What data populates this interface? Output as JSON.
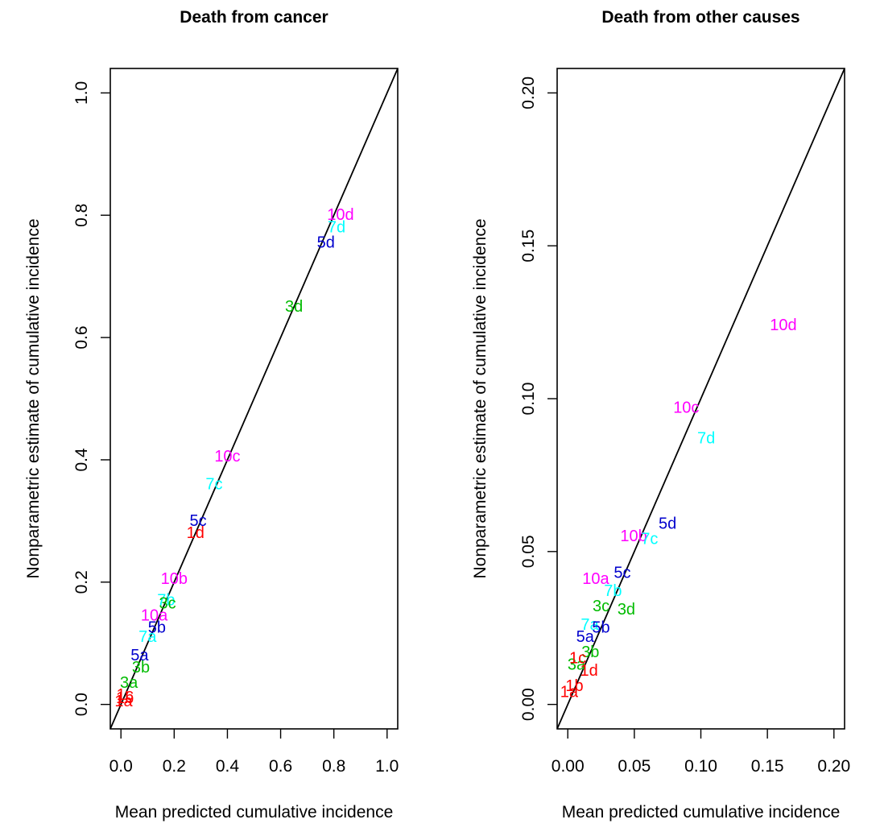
{
  "chart_data": [
    {
      "type": "scatter",
      "title": "Death from cancer",
      "xlabel": "Mean predicted cumulative incidence",
      "ylabel": "Nonparametric estimate of cumulative incidence",
      "xlim": [
        -0.04,
        1.04
      ],
      "ylim": [
        -0.04,
        1.04
      ],
      "xticks": [
        "0.0",
        "0.2",
        "0.4",
        "0.6",
        "0.8",
        "1.0"
      ],
      "yticks": [
        "0.0",
        "0.2",
        "0.4",
        "0.6",
        "0.8",
        "1.0"
      ],
      "reference_line": "y = x",
      "grid": false,
      "points": [
        {
          "label": "10d",
          "x": 0.825,
          "y": 0.8,
          "color": "#FF00FF"
        },
        {
          "label": "7d",
          "x": 0.81,
          "y": 0.78,
          "color": "#00FFFF"
        },
        {
          "label": "5d",
          "x": 0.77,
          "y": 0.755,
          "color": "#0000CD"
        },
        {
          "label": "3d",
          "x": 0.65,
          "y": 0.65,
          "color": "#00BB00"
        },
        {
          "label": "10c",
          "x": 0.4,
          "y": 0.405,
          "color": "#FF00FF"
        },
        {
          "label": "7c",
          "x": 0.35,
          "y": 0.36,
          "color": "#00FFFF"
        },
        {
          "label": "5c",
          "x": 0.29,
          "y": 0.3,
          "color": "#0000CD"
        },
        {
          "label": "1d",
          "x": 0.28,
          "y": 0.28,
          "color": "#FF0000"
        },
        {
          "label": "10b",
          "x": 0.2,
          "y": 0.205,
          "color": "#FF00FF"
        },
        {
          "label": "7b",
          "x": 0.17,
          "y": 0.17,
          "color": "#00FFFF"
        },
        {
          "label": "3c",
          "x": 0.175,
          "y": 0.165,
          "color": "#00BB00"
        },
        {
          "label": "10a",
          "x": 0.125,
          "y": 0.145,
          "color": "#FF00FF"
        },
        {
          "label": "5b",
          "x": 0.135,
          "y": 0.125,
          "color": "#0000CD"
        },
        {
          "label": "7a",
          "x": 0.1,
          "y": 0.11,
          "color": "#00FFFF"
        },
        {
          "label": "5a",
          "x": 0.07,
          "y": 0.08,
          "color": "#0000CD"
        },
        {
          "label": "3b",
          "x": 0.075,
          "y": 0.06,
          "color": "#00BB00"
        },
        {
          "label": "3a",
          "x": 0.03,
          "y": 0.035,
          "color": "#00BB00"
        },
        {
          "label": "1c",
          "x": 0.015,
          "y": 0.015,
          "color": "#FF0000"
        },
        {
          "label": "1b",
          "x": 0.015,
          "y": 0.01,
          "color": "#FF0000"
        },
        {
          "label": "1a",
          "x": 0.01,
          "y": 0.005,
          "color": "#FF0000"
        }
      ]
    },
    {
      "type": "scatter",
      "title": "Death from other causes",
      "xlabel": "Mean predicted cumulative incidence",
      "ylabel": "Nonparametric estimate of cumulative incidence",
      "xlim": [
        -0.008,
        0.208
      ],
      "ylim": [
        -0.008,
        0.208
      ],
      "xticks": [
        "0.00",
        "0.05",
        "0.10",
        "0.15",
        "0.20"
      ],
      "yticks": [
        "0.00",
        "0.05",
        "0.10",
        "0.15",
        "0.20"
      ],
      "reference_line": "y = x",
      "grid": false,
      "points": [
        {
          "label": "10d",
          "x": 0.162,
          "y": 0.124,
          "color": "#FF00FF"
        },
        {
          "label": "10c",
          "x": 0.089,
          "y": 0.097,
          "color": "#FF00FF"
        },
        {
          "label": "7d",
          "x": 0.104,
          "y": 0.087,
          "color": "#00FFFF"
        },
        {
          "label": "5d",
          "x": 0.075,
          "y": 0.059,
          "color": "#0000CD"
        },
        {
          "label": "10b",
          "x": 0.0495,
          "y": 0.055,
          "color": "#FF00FF"
        },
        {
          "label": "7c",
          "x": 0.0615,
          "y": 0.054,
          "color": "#00FFFF"
        },
        {
          "label": "5c",
          "x": 0.041,
          "y": 0.043,
          "color": "#0000CD"
        },
        {
          "label": "10a",
          "x": 0.021,
          "y": 0.041,
          "color": "#FF00FF"
        },
        {
          "label": "7b",
          "x": 0.034,
          "y": 0.037,
          "color": "#00FFFF"
        },
        {
          "label": "3c",
          "x": 0.025,
          "y": 0.032,
          "color": "#00BB00"
        },
        {
          "label": "3d",
          "x": 0.044,
          "y": 0.031,
          "color": "#00BB00"
        },
        {
          "label": "7a",
          "x": 0.0165,
          "y": 0.026,
          "color": "#00FFFF"
        },
        {
          "label": "5b",
          "x": 0.025,
          "y": 0.025,
          "color": "#0000CD"
        },
        {
          "label": "5a",
          "x": 0.013,
          "y": 0.022,
          "color": "#0000CD"
        },
        {
          "label": "3b",
          "x": 0.017,
          "y": 0.017,
          "color": "#00BB00"
        },
        {
          "label": "3a",
          "x": 0.0065,
          "y": 0.013,
          "color": "#00BB00"
        },
        {
          "label": "1c",
          "x": 0.0075,
          "y": 0.015,
          "color": "#FF0000"
        },
        {
          "label": "1d",
          "x": 0.016,
          "y": 0.011,
          "color": "#FF0000"
        },
        {
          "label": "1b",
          "x": 0.005,
          "y": 0.006,
          "color": "#FF0000"
        },
        {
          "label": "1a",
          "x": 0.001,
          "y": 0.004,
          "color": "#FF0000"
        }
      ]
    }
  ]
}
